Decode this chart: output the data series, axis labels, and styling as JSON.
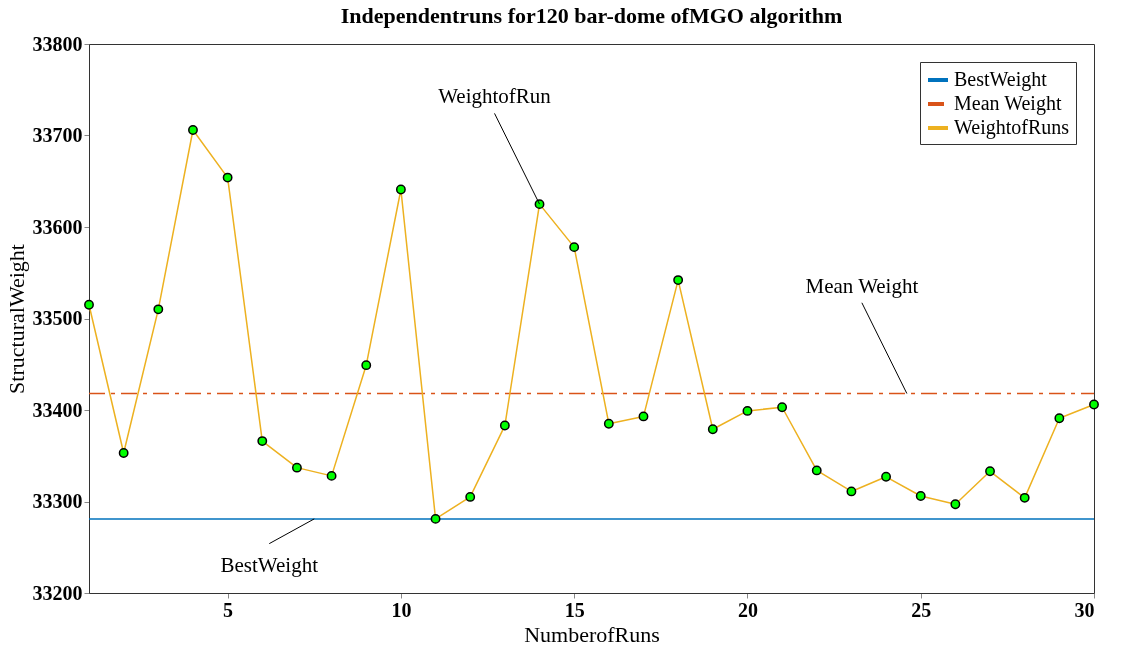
{
  "chart_data": {
    "type": "line",
    "title": "Independentruns for120 bar-dome ofMGO algorithm",
    "xlabel": "NumberofRuns",
    "ylabel": "StructuralWeight",
    "x": [
      1,
      2,
      3,
      4,
      5,
      6,
      7,
      8,
      9,
      10,
      11,
      12,
      13,
      14,
      15,
      16,
      17,
      18,
      19,
      20,
      21,
      22,
      23,
      24,
      25,
      26,
      27,
      28,
      29,
      30
    ],
    "series": [
      {
        "name": "BestWeight",
        "color": "#0072bd",
        "values": [
          33281,
          33281,
          33281,
          33281,
          33281,
          33281,
          33281,
          33281,
          33281,
          33281,
          33281,
          33281,
          33281,
          33281,
          33281,
          33281,
          33281,
          33281,
          33281,
          33281,
          33281,
          33281,
          33281,
          33281,
          33281,
          33281,
          33281,
          33281,
          33281,
          33281
        ],
        "marker": "none",
        "line_style": "solid"
      },
      {
        "name": "Mean Weight",
        "color": "#d95319",
        "values": [
          33418,
          33418,
          33418,
          33418,
          33418,
          33418,
          33418,
          33418,
          33418,
          33418,
          33418,
          33418,
          33418,
          33418,
          33418,
          33418,
          33418,
          33418,
          33418,
          33418,
          33418,
          33418,
          33418,
          33418,
          33418,
          33418,
          33418,
          33418,
          33418,
          33418
        ],
        "marker": "none",
        "line_style": "dashed"
      },
      {
        "name": "WeightofRuns",
        "color": "#edb120",
        "marker": "circle",
        "line_style": "solid",
        "values": [
          33515,
          33353,
          33510,
          33706,
          33654,
          33366,
          33337,
          33328,
          33449,
          33641,
          33281,
          33305,
          33383,
          33625,
          33578,
          33385,
          33393,
          33542,
          33379,
          33399,
          33403,
          33334,
          33311,
          33327,
          33306,
          33297,
          33333,
          33304,
          33391,
          33406
        ]
      }
    ],
    "annotations": [
      {
        "text": "BestWeight",
        "x": 7.5,
        "y": 33281
      },
      {
        "text": "WeightofRun",
        "x": 14,
        "y": 33625
      },
      {
        "text": "Mean Weight",
        "x": 24.6,
        "y": 33418
      }
    ],
    "xlim": [
      1,
      30
    ],
    "xticks": [
      5,
      10,
      15,
      20,
      25,
      30
    ],
    "ylim": [
      33200,
      33800
    ],
    "yticks": [
      33200,
      33300,
      33400,
      33500,
      33600,
      33700,
      33800
    ],
    "grid": false,
    "legend": "top right"
  }
}
